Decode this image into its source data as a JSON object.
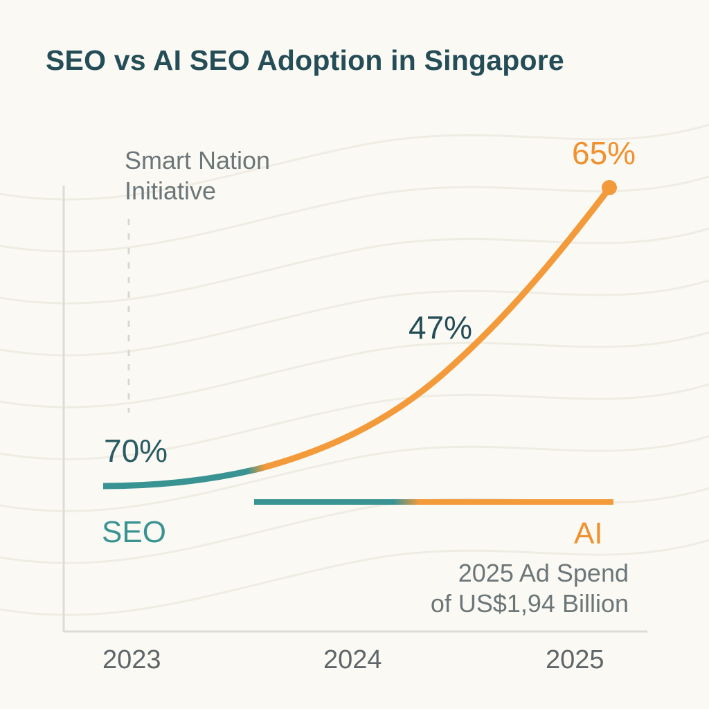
{
  "colors": {
    "background": "#fbf9f3",
    "title": "#244d57",
    "seo": "#3a9393",
    "ai": "#f39a3a",
    "annotation": "#6b7679",
    "axis": "#dddbd5"
  },
  "chart_data": {
    "type": "line",
    "title": "SEO vs AI SEO Adoption in Singapore",
    "xlabel": "",
    "ylabel": "",
    "x": [
      "2023",
      "2024",
      "2025"
    ],
    "grid": false,
    "series": [
      {
        "name": "SEO",
        "legend_label": "SEO",
        "color": "#3a9393",
        "values": [
          70,
          null,
          null
        ],
        "labels": [
          {
            "x": "2023",
            "text": "70%"
          }
        ]
      },
      {
        "name": "AI",
        "legend_label": "AI",
        "color": "#f39a3a",
        "values": [
          null,
          47,
          65
        ],
        "labels": [
          {
            "x": "2024",
            "text": "47%"
          },
          {
            "x": "2025",
            "text": "65%"
          }
        ]
      }
    ],
    "annotations": [
      {
        "text_lines": [
          "Smart Nation",
          "Initiative"
        ],
        "x": "2023"
      },
      {
        "text_lines": [
          "2025 Ad Spend",
          "of US$1,94 Billion"
        ],
        "x": "2025"
      }
    ],
    "legend": "inline"
  }
}
